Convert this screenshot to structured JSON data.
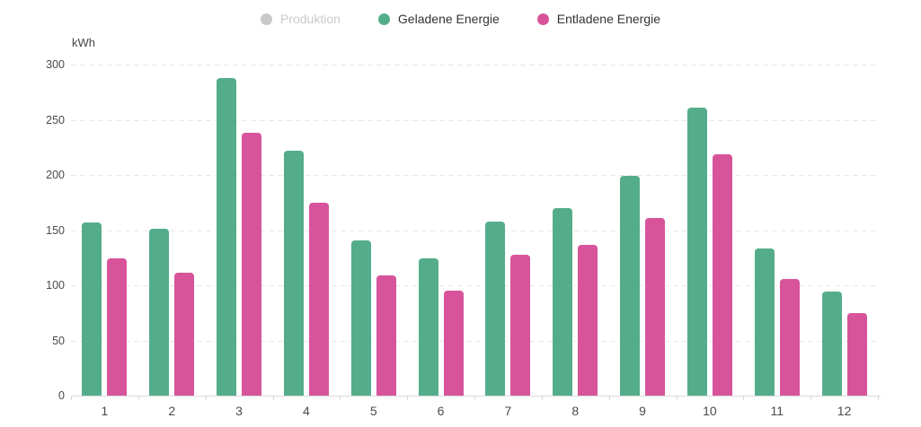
{
  "legend": {
    "items": [
      {
        "label": "Produktion",
        "color": "#c9c9c9",
        "text_color": "#c9c9c9",
        "enabled": false
      },
      {
        "label": "Geladene Energie",
        "color": "#54ad8a",
        "text_color": "#333333",
        "enabled": true
      },
      {
        "label": "Entladene Energie",
        "color": "#d7549b",
        "text_color": "#333333",
        "enabled": true
      }
    ]
  },
  "axis": {
    "unit_label": "kWh",
    "y_ticks": [
      0,
      50,
      100,
      150,
      200,
      250,
      300
    ],
    "grid_color": "#e8e8e8",
    "axis_line_color": "#d9d9d9",
    "label_color": "#4a4a4a"
  },
  "chart_data": {
    "type": "bar",
    "categories": [
      "1",
      "2",
      "3",
      "4",
      "5",
      "6",
      "7",
      "8",
      "9",
      "10",
      "11",
      "12"
    ],
    "series": [
      {
        "name": "Produktion",
        "color": "#c9c9c9",
        "visible": false,
        "values": null
      },
      {
        "name": "Geladene Energie",
        "color": "#54ad8a",
        "visible": true,
        "values": [
          157,
          151,
          288,
          222,
          141,
          124,
          158,
          170,
          199,
          261,
          133,
          94
        ]
      },
      {
        "name": "Entladene Energie",
        "color": "#d7549b",
        "visible": true,
        "values": [
          124,
          111,
          238,
          175,
          109,
          95,
          128,
          137,
          161,
          219,
          106,
          75
        ]
      }
    ],
    "title": "",
    "xlabel": "",
    "ylabel": "kWh",
    "ylim": [
      0,
      300
    ],
    "ytick_step": 50,
    "grid": "horizontal-dashed",
    "legend_position": "top-center"
  }
}
